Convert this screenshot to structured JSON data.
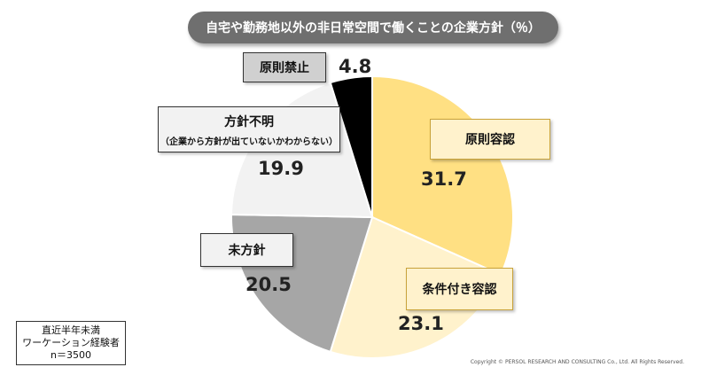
{
  "chart_data": {
    "type": "pie",
    "title": "自宅や勤務地以外の非日常空間で働くことの企業方針（％）",
    "categories": [
      "原則容認",
      "条件付き容認",
      "未方針",
      "方針不明",
      "原則禁止"
    ],
    "category_sublabels": [
      "",
      "",
      "",
      "（企業から方針が出ていないかわからない）",
      ""
    ],
    "values": [
      31.7,
      23.1,
      20.5,
      19.9,
      4.8
    ],
    "value_labels": [
      "31.7",
      "23.1",
      "20.5",
      "19.9",
      "4.8"
    ],
    "colors": [
      "#ffe083",
      "#fff2cc",
      "#a6a6a6",
      "#f2f2f2",
      "#000000"
    ],
    "label_box_colors": [
      "#fff2cc",
      "#fff2cc",
      "#f2f2f2",
      "#f2f2f2",
      "#d0d0d0"
    ],
    "start": "12 o'clock",
    "direction": "clockwise"
  },
  "sample_note": [
    "直近半年未満",
    "ワーケーション経験者",
    "n＝3500"
  ],
  "copyright": "Copyright ©  PERSOL  RESEARCH AND CONSULTING Co., Ltd. All Rights Reserved."
}
